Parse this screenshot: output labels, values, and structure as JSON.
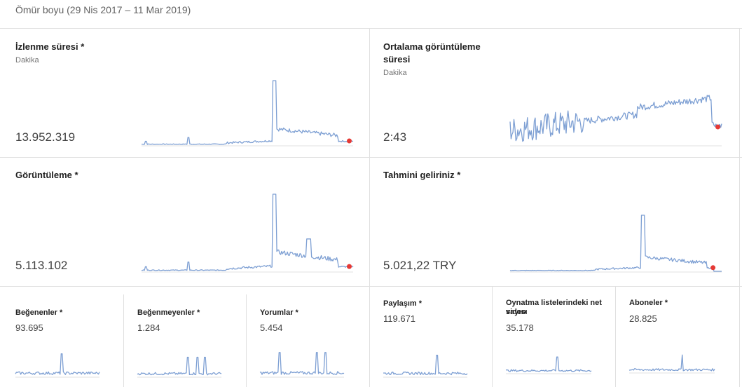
{
  "header": {
    "period": "Ömür boyu (29 Nis 2017 – 11 Mar 2019)"
  },
  "cards": {
    "watch_time": {
      "title": "İzlenme süresi *",
      "unit": "Dakika",
      "value": "13.952.319"
    },
    "avg_view_duration": {
      "title_line1": "Ortalama görüntüleme",
      "title_line2": "süresi",
      "unit": "Dakika",
      "value": "2:43"
    },
    "views": {
      "title": "Görüntüleme *",
      "value": "5.113.102"
    },
    "revenue": {
      "title": "Tahmini geliriniz *",
      "value": "5.021,22 TRY"
    }
  },
  "small_cards": [
    {
      "title": "Beğenenler *",
      "value": "93.695"
    },
    {
      "title": "Beğenmeyenler *",
      "value": "1.284"
    },
    {
      "title": "Yorumlar *",
      "value": "5.454"
    },
    {
      "title": "Paylaşım *",
      "value": "119.671"
    },
    {
      "title_line1": "Oynatma listelerindeki net video",
      "title_line2": "sayısı",
      "value": "35.178"
    },
    {
      "title": "Aboneler *",
      "value": "28.825"
    }
  ],
  "colors": {
    "line": "#7d9fd3",
    "current_marker": "#e53935",
    "divider": "#e0e0e0"
  }
}
